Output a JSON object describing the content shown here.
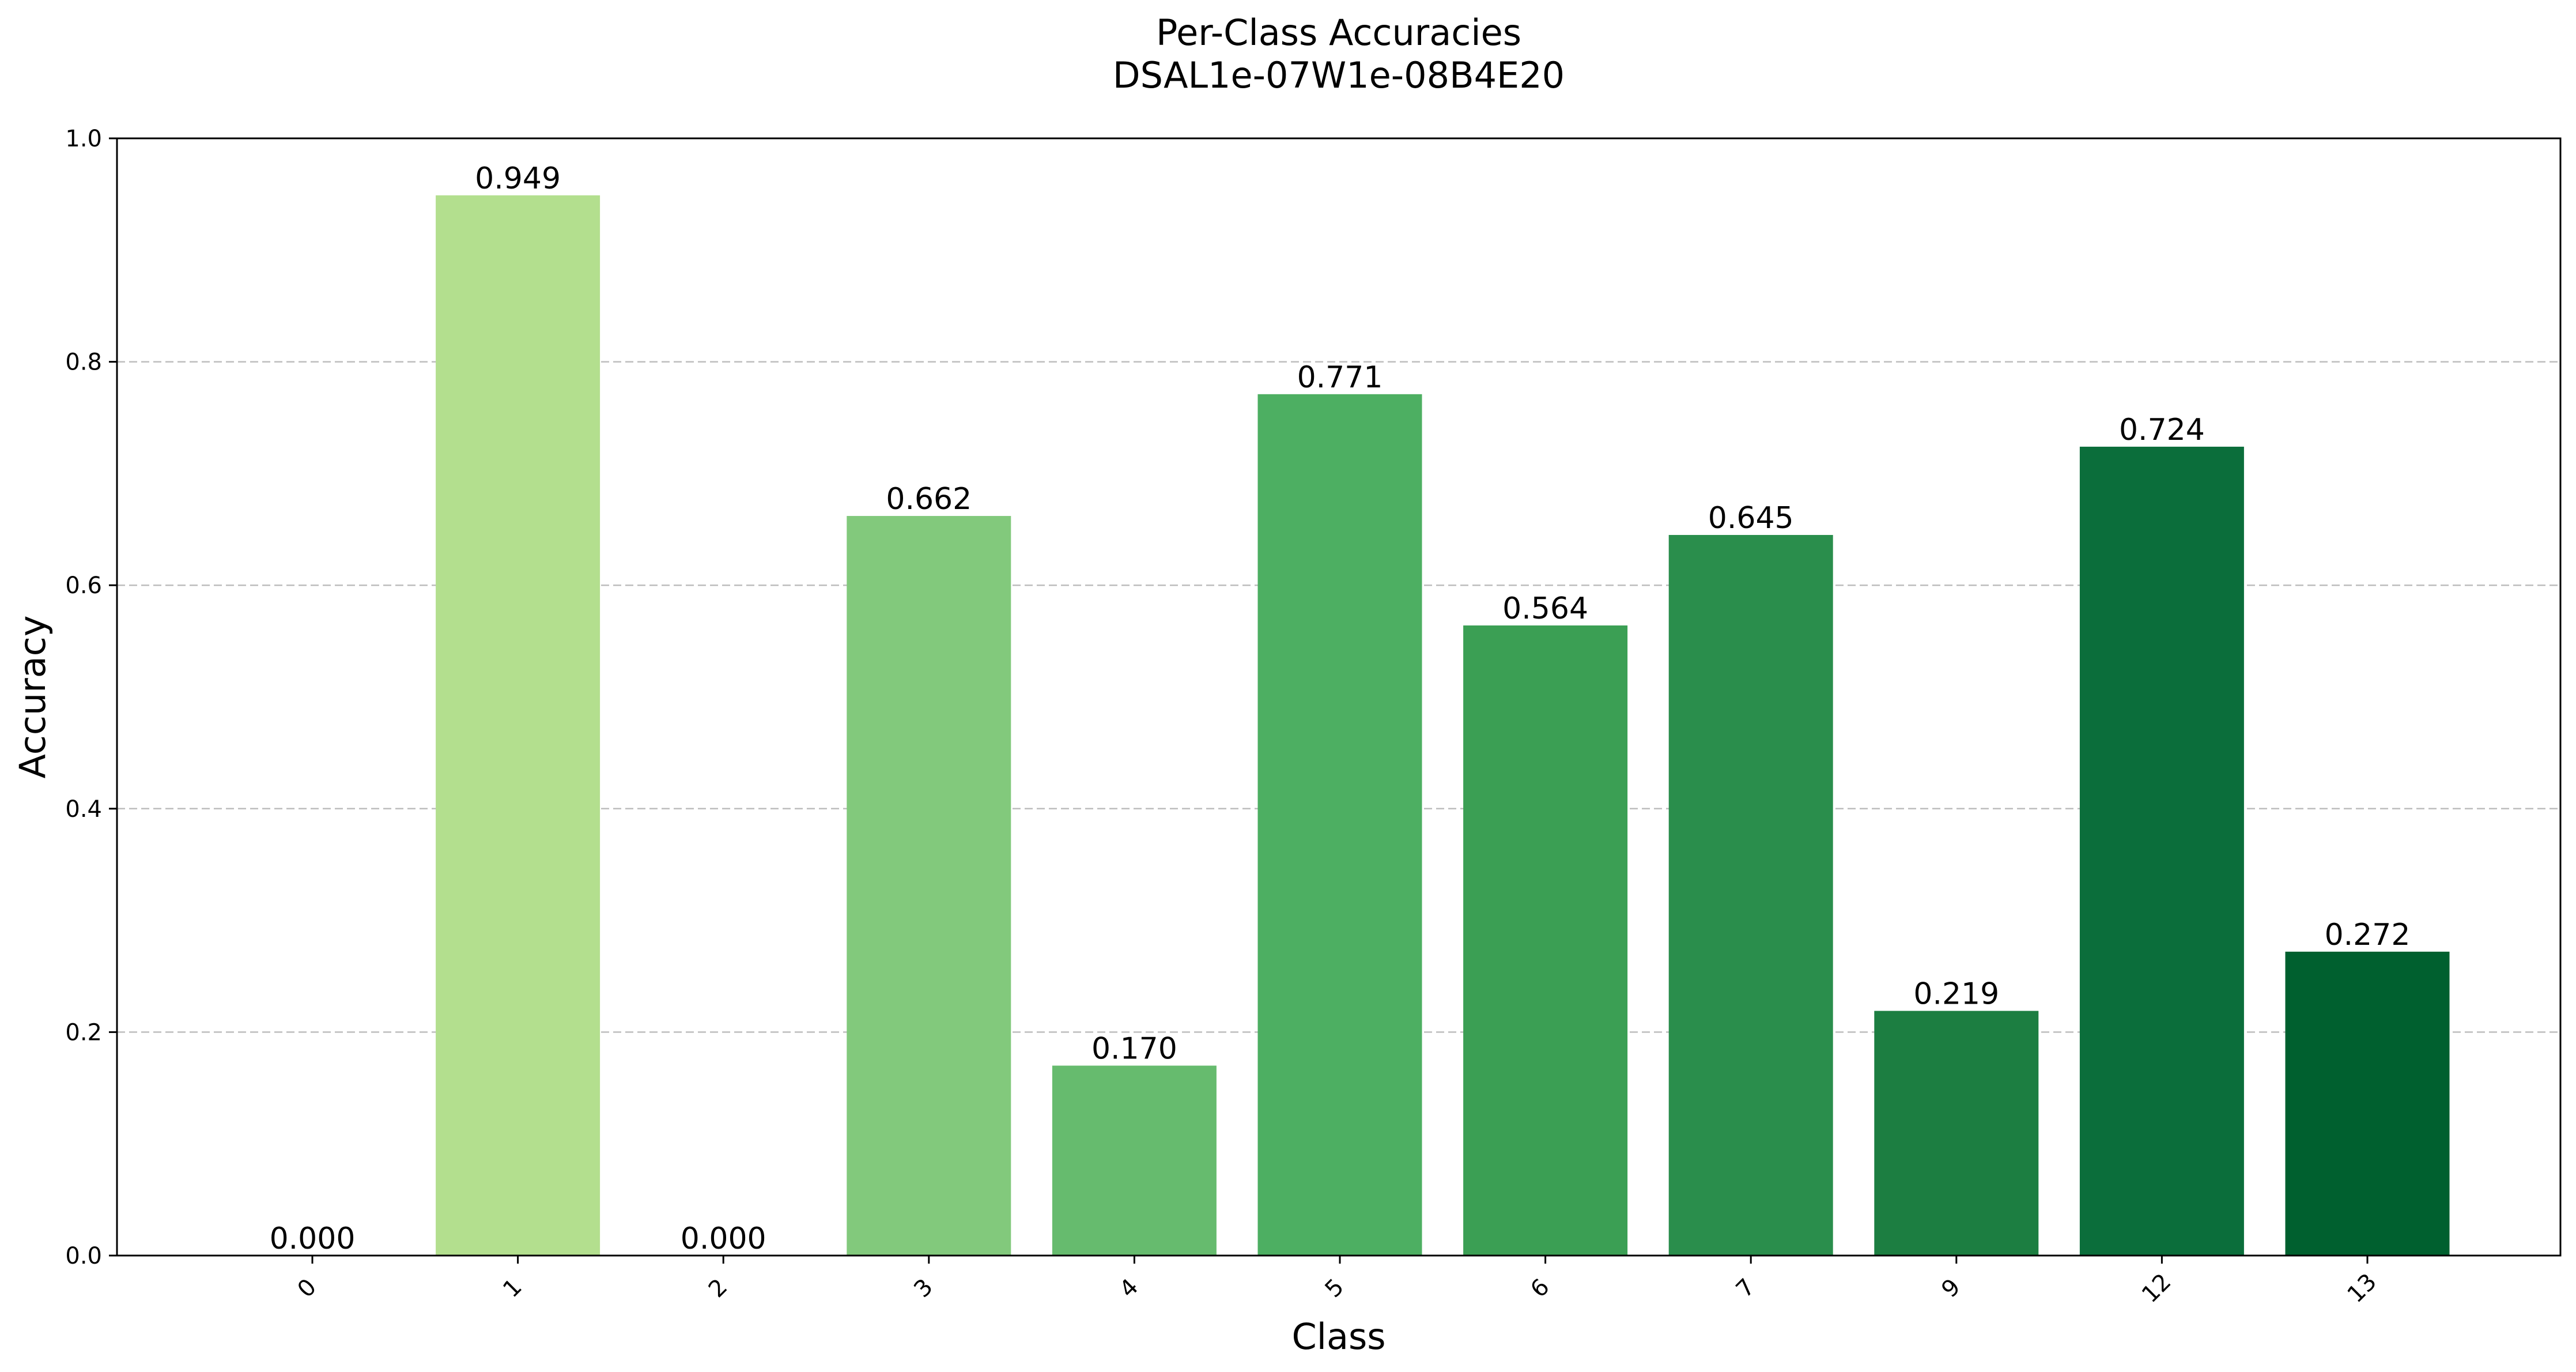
{
  "chart_data": {
    "type": "bar",
    "title": "Per-Class Accuracies",
    "subtitle": "DSAL1e-07W1e-08B4E20",
    "xlabel": "Class",
    "ylabel": "Accuracy",
    "categories": [
      "0",
      "1",
      "2",
      "3",
      "4",
      "5",
      "6",
      "7",
      "9",
      "12",
      "13"
    ],
    "values": [
      0.0,
      0.949,
      0.0,
      0.662,
      0.17,
      0.771,
      0.564,
      0.645,
      0.219,
      0.724,
      0.272
    ],
    "value_labels": [
      "0.000",
      "0.949",
      "0.000",
      "0.662",
      "0.170",
      "0.771",
      "0.564",
      "0.645",
      "0.219",
      "0.724",
      "0.272"
    ],
    "ylim": [
      0,
      1.0
    ],
    "yticks": [
      "0.0",
      "0.2",
      "0.4",
      "0.6",
      "0.8",
      "1.0"
    ],
    "grid": "y-dashed",
    "colors": [
      "#b5e08f",
      "#b3df8e",
      "#9fd585",
      "#82c97c",
      "#66bb6e",
      "#4daf62",
      "#3b9f54",
      "#2a8e4c",
      "#1c7e41",
      "#0b6e3b",
      "#00602f"
    ]
  }
}
